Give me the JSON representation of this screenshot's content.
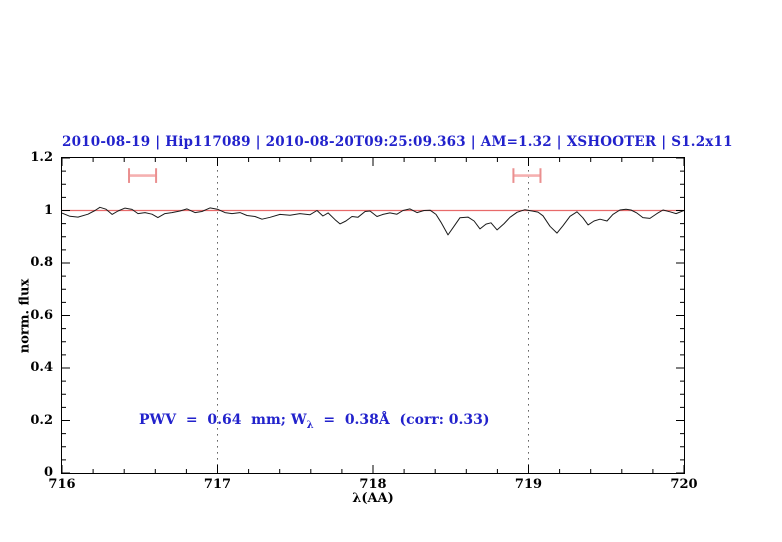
{
  "title": {
    "text": "2010-08-19 | Hip117089 | 2010-08-20T09:25:09.363 | AM=1.32 | XSHOOTER | S1.2x11",
    "color": "#2222cc"
  },
  "annotation": {
    "prefix": "PWV  =  0.64  mm; W",
    "sub": "λ",
    "suffix": "  =  0.38Å  (corr: 0.33)",
    "color": "#2222cc"
  },
  "chart_data": {
    "type": "line",
    "title": "2010-08-19 | Hip117089 | 2010-08-20T09:25:09.363 | AM=1.32 | XSHOOTER | S1.2x11",
    "xlabel": "λ(AA)",
    "ylabel": "norm. flux",
    "xlim": [
      716,
      720
    ],
    "ylim": [
      0,
      1.2
    ],
    "grid": false,
    "legend": "none",
    "x_major_ticks": [
      716,
      717,
      718,
      719,
      720
    ],
    "x_tick_labels": [
      "716",
      "717",
      "718",
      "719",
      "720"
    ],
    "x_minor_step": 0.2,
    "y_major_ticks": [
      0,
      0.2,
      0.4,
      0.6,
      0.8,
      1,
      1.2
    ],
    "y_tick_labels": [
      "0",
      "0.2",
      "0.4",
      "0.6",
      "0.8",
      "1",
      "1.2"
    ],
    "y_minor_step": 0.05,
    "dotted_vlines": [
      717,
      719
    ],
    "continuum_line_y": 1.0,
    "pwv_range_markers": [
      {
        "x_center": 716.518,
        "x_half_width": 0.087,
        "y": 1.133,
        "cap_half_height": 0.028
      },
      {
        "x_center": 718.99,
        "x_half_width": 0.087,
        "y": 1.133,
        "cap_half_height": 0.028
      }
    ],
    "colors": {
      "spectrum": "#1a1a1a",
      "continuum": "#e86a6a",
      "marker_bar": "#f5b0b0",
      "marker_cap": "#ea8f8f",
      "dotted": "#666666",
      "axis": "#000000"
    },
    "series": [
      {
        "name": "normalized telluric spectrum",
        "color": "#1a1a1a",
        "points": [
          [
            716.0,
            0.99
          ],
          [
            716.051,
            0.978
          ],
          [
            716.103,
            0.975
          ],
          [
            716.167,
            0.986
          ],
          [
            716.212,
            1.0
          ],
          [
            716.244,
            1.012
          ],
          [
            716.283,
            1.005
          ],
          [
            716.322,
            0.985
          ],
          [
            716.36,
            0.998
          ],
          [
            716.405,
            1.009
          ],
          [
            716.45,
            1.004
          ],
          [
            716.489,
            0.988
          ],
          [
            716.534,
            0.992
          ],
          [
            716.579,
            0.986
          ],
          [
            716.617,
            0.973
          ],
          [
            716.662,
            0.988
          ],
          [
            716.707,
            0.992
          ],
          [
            716.759,
            0.998
          ],
          [
            716.804,
            1.006
          ],
          [
            716.855,
            0.992
          ],
          [
            716.9,
            0.996
          ],
          [
            716.952,
            1.01
          ],
          [
            717.003,
            1.004
          ],
          [
            717.048,
            0.992
          ],
          [
            717.093,
            0.988
          ],
          [
            717.145,
            0.992
          ],
          [
            717.19,
            0.981
          ],
          [
            717.241,
            0.977
          ],
          [
            717.286,
            0.967
          ],
          [
            717.338,
            0.974
          ],
          [
            717.402,
            0.985
          ],
          [
            717.466,
            0.982
          ],
          [
            717.53,
            0.988
          ],
          [
            717.595,
            0.984
          ],
          [
            717.64,
            1.0
          ],
          [
            717.678,
            0.979
          ],
          [
            717.711,
            0.991
          ],
          [
            717.756,
            0.965
          ],
          [
            717.788,
            0.949
          ],
          [
            717.826,
            0.96
          ],
          [
            717.865,
            0.977
          ],
          [
            717.903,
            0.974
          ],
          [
            717.949,
            0.996
          ],
          [
            717.981,
            0.998
          ],
          [
            718.026,
            0.977
          ],
          [
            718.064,
            0.985
          ],
          [
            718.109,
            0.991
          ],
          [
            718.154,
            0.986
          ],
          [
            718.193,
            1.0
          ],
          [
            718.238,
            1.006
          ],
          [
            718.283,
            0.992
          ],
          [
            718.328,
            1.0
          ],
          [
            718.367,
            1.001
          ],
          [
            718.405,
            0.985
          ],
          [
            718.437,
            0.955
          ],
          [
            718.482,
            0.907
          ],
          [
            718.521,
            0.94
          ],
          [
            718.559,
            0.972
          ],
          [
            718.611,
            0.975
          ],
          [
            718.65,
            0.96
          ],
          [
            718.688,
            0.93
          ],
          [
            718.727,
            0.948
          ],
          [
            718.759,
            0.953
          ],
          [
            718.798,
            0.926
          ],
          [
            718.843,
            0.95
          ],
          [
            718.881,
            0.974
          ],
          [
            718.926,
            0.993
          ],
          [
            718.977,
            1.003
          ],
          [
            719.023,
            0.998
          ],
          [
            719.061,
            0.994
          ],
          [
            719.093,
            0.98
          ],
          [
            719.138,
            0.94
          ],
          [
            719.183,
            0.914
          ],
          [
            719.222,
            0.942
          ],
          [
            719.267,
            0.978
          ],
          [
            719.312,
            0.995
          ],
          [
            719.35,
            0.972
          ],
          [
            719.383,
            0.945
          ],
          [
            719.421,
            0.96
          ],
          [
            719.46,
            0.967
          ],
          [
            719.505,
            0.96
          ],
          [
            719.543,
            0.985
          ],
          [
            719.588,
            1.002
          ],
          [
            719.627,
            1.005
          ],
          [
            719.659,
            1.002
          ],
          [
            719.698,
            0.99
          ],
          [
            719.736,
            0.973
          ],
          [
            719.781,
            0.97
          ],
          [
            719.826,
            0.988
          ],
          [
            719.865,
            1.002
          ],
          [
            719.91,
            0.995
          ],
          [
            719.949,
            0.988
          ],
          [
            720.0,
            1.0
          ]
        ]
      }
    ]
  }
}
